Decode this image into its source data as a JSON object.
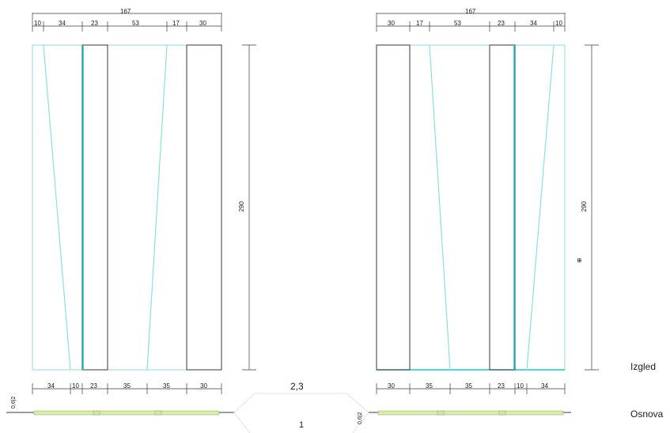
{
  "colors": {
    "ink": "#3a3a3a",
    "edge_cyan": "#8fdede",
    "pane_cyan": "#18c8d8",
    "base_green": "#d7ecb0",
    "background": "#ffffff"
  },
  "left_view": {
    "total_width": "167",
    "top_dims": [
      "10",
      "34",
      "23",
      "53",
      "17",
      "30"
    ],
    "bottom_dims": [
      "34",
      "10",
      "23",
      "35",
      "35",
      "30"
    ],
    "height": "290",
    "plan_note": "0,6|2"
  },
  "right_view": {
    "total_width": "167",
    "top_dims": [
      "30",
      "17",
      "53",
      "23",
      "34",
      "10"
    ],
    "bottom_dims": [
      "30",
      "35",
      "35",
      "23",
      "10",
      "34"
    ],
    "height": "290",
    "plan_note": "0,6|2",
    "marker": "⊕"
  },
  "labels": {
    "center_top": "2,3",
    "center_bottom": "1",
    "elevation": "Izgled",
    "plan": "Osnova"
  }
}
